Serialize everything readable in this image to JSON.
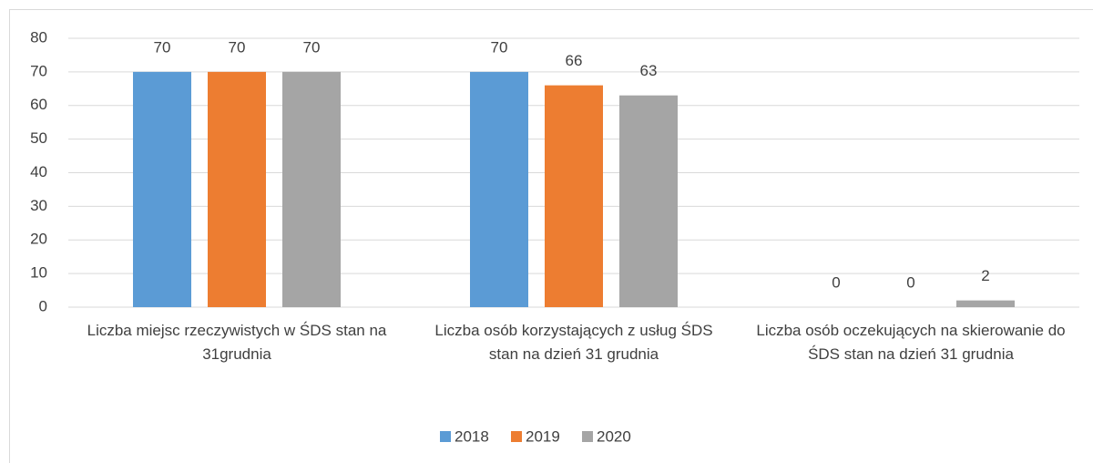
{
  "chart_data": {
    "type": "bar",
    "categories": [
      "Liczba miejsc rzeczywistych w ŚDS stan na 31grudnia",
      "Liczba osób korzystających z usług ŚDS stan na dzień 31 grudnia",
      "Liczba osób oczekujących na skierowanie do ŚDS stan na dzień 31 grudnia"
    ],
    "series": [
      {
        "name": "2018",
        "color": "#5b9bd5",
        "values": [
          70,
          70,
          0
        ]
      },
      {
        "name": "2019",
        "color": "#ed7d31",
        "values": [
          70,
          66,
          0
        ]
      },
      {
        "name": "2020",
        "color": "#a5a5a5",
        "values": [
          70,
          63,
          2
        ]
      }
    ],
    "ylim": [
      0,
      80
    ],
    "yticks": [
      0,
      10,
      20,
      30,
      40,
      50,
      60,
      70,
      80
    ],
    "grid": true,
    "legend": "bottom"
  }
}
